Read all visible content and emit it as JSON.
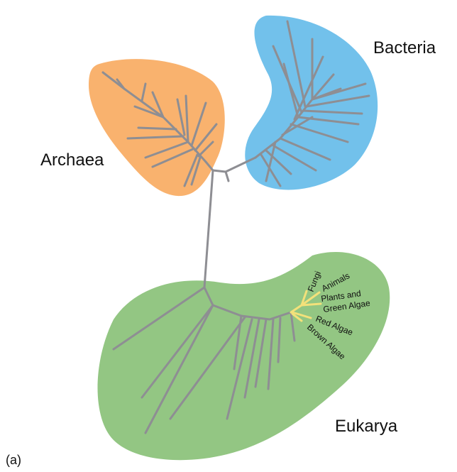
{
  "colors": {
    "archaea_fill": "#F9B26E",
    "bacteria_fill": "#72C1EB",
    "eukarya_fill": "#93C683",
    "branch": "#8E8E93",
    "highlight_branch": "#F3E17A"
  },
  "domains": {
    "bacteria": "Bacteria",
    "archaea": "Archaea",
    "eukarya": "Eukarya"
  },
  "eukaryote_groups": {
    "fungi": "Fungi",
    "animals": "Animals",
    "plants_line1": "Plants and",
    "plants_line2": "Green Algae",
    "red_algae": "Red Algae",
    "brown_algae": "Brown Algae"
  },
  "panel_label": "(a)"
}
